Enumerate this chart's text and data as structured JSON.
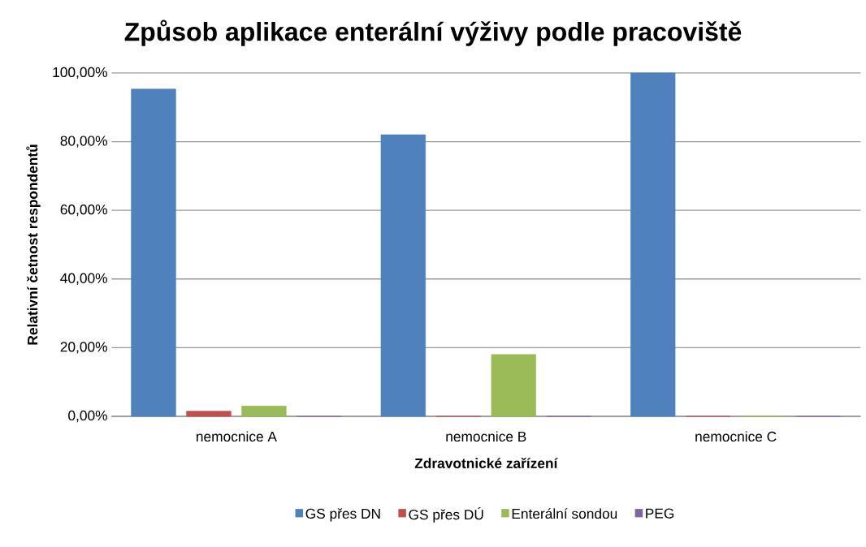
{
  "chart_data": {
    "type": "bar",
    "title": "Způsob aplikace enterální výživy podle pracoviště",
    "xlabel": "Zdravotnické zařízení",
    "ylabel": "Relativní četnost respondentů",
    "categories": [
      "nemocnice A",
      "nemocnice B",
      "nemocnice C"
    ],
    "series": [
      {
        "name": "GS přes DN",
        "color": "#4f81bd",
        "values": [
          95.3,
          82,
          100
        ]
      },
      {
        "name": "GS přes DÚ",
        "color": "#c0504d",
        "values": [
          1.5,
          0,
          0
        ]
      },
      {
        "name": "Enterální sondou",
        "color": "#9bbb59",
        "values": [
          3.0,
          18,
          0
        ]
      },
      {
        "name": "PEG",
        "color": "#8064a2",
        "values": [
          0,
          0,
          0
        ]
      }
    ],
    "ylim": [
      0,
      100
    ],
    "yticks": [
      {
        "value": 0,
        "label": "0,00%"
      },
      {
        "value": 20,
        "label": "20,00%"
      },
      {
        "value": 40,
        "label": "40,00%"
      },
      {
        "value": 60,
        "label": "60,00%"
      },
      {
        "value": 80,
        "label": "80,00%"
      },
      {
        "value": 100,
        "label": "100,00%"
      }
    ],
    "grid": "y",
    "legend": "bottom"
  }
}
